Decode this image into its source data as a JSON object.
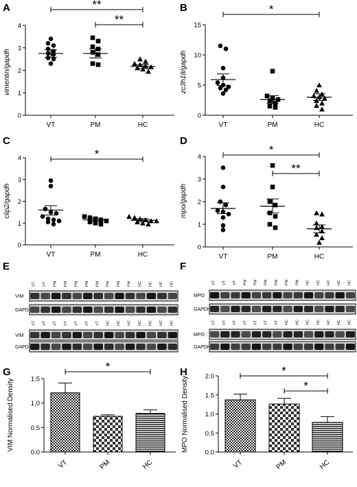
{
  "chart_data": [
    {
      "panel": "A",
      "type": "scatter",
      "ylabel": "vimentin/gapdh",
      "categories": [
        "VT",
        "PM",
        "HC"
      ],
      "ylim": [
        0,
        4
      ],
      "yticks": [
        0,
        1,
        2,
        3,
        4
      ],
      "marker": "circle",
      "groups": [
        {
          "category": "VT",
          "marker": "circle",
          "points": [
            3.4,
            3.2,
            3.1,
            2.95,
            2.85,
            2.75,
            2.7,
            2.55,
            2.5,
            2.3
          ],
          "mean": 2.75,
          "sem_low": 2.58,
          "sem_high": 2.92
        },
        {
          "category": "PM",
          "marker": "square",
          "points": [
            3.45,
            3.3,
            3.05,
            2.95,
            2.8,
            2.7,
            2.3,
            2.25
          ],
          "mean": 2.75,
          "sem_low": 2.55,
          "sem_high": 2.95
        },
        {
          "category": "HC",
          "marker": "triangle",
          "points": [
            2.5,
            2.4,
            2.3,
            2.25,
            2.2,
            2.15,
            2.1,
            2.05,
            1.95
          ],
          "mean": 2.17,
          "sem_low": 2.08,
          "sem_high": 2.26
        }
      ],
      "significance": [
        {
          "from": "VT",
          "to": "HC",
          "label": "**"
        },
        {
          "from": "PM",
          "to": "HC",
          "label": "**"
        }
      ]
    },
    {
      "panel": "B",
      "type": "scatter",
      "ylabel": "zc3h18/gapdh",
      "categories": [
        "VT",
        "PM",
        "HC"
      ],
      "ylim": [
        0,
        15
      ],
      "yticks": [
        0,
        5,
        10,
        15
      ],
      "groups": [
        {
          "category": "VT",
          "marker": "circle",
          "points": [
            11.5,
            11.0,
            7.8,
            6.2,
            5.4,
            5.0,
            4.7,
            4.5,
            4.2,
            3.6
          ],
          "mean": 5.9,
          "sem_low": 4.95,
          "sem_high": 6.85
        },
        {
          "category": "PM",
          "marker": "square",
          "points": [
            7.3,
            3.2,
            2.8,
            2.6,
            2.4,
            2.0,
            1.5,
            1.3
          ],
          "mean": 2.6,
          "sem_low": 1.95,
          "sem_high": 3.25
        },
        {
          "category": "HC",
          "marker": "triangle",
          "points": [
            5.0,
            4.1,
            3.5,
            3.2,
            3.0,
            2.8,
            2.4,
            2.0,
            1.6,
            1.0
          ],
          "mean": 3.0,
          "sem_low": 2.45,
          "sem_high": 3.55
        }
      ],
      "significance": [
        {
          "from": "VT",
          "to": "HC",
          "label": "*"
        }
      ]
    },
    {
      "panel": "C",
      "type": "scatter",
      "ylabel": "clip2/gapdh",
      "categories": [
        "VT",
        "PM",
        "HC"
      ],
      "ylim": [
        0,
        4
      ],
      "yticks": [
        0,
        1,
        2,
        3,
        4
      ],
      "groups": [
        {
          "category": "VT",
          "marker": "circle",
          "points": [
            2.95,
            2.7,
            1.65,
            1.5,
            1.45,
            1.3,
            1.2,
            1.15,
            1.1,
            1.05,
            0.95
          ],
          "mean": 1.6,
          "sem_low": 1.37,
          "sem_high": 1.8
        },
        {
          "category": "PM",
          "marker": "square",
          "points": [
            1.3,
            1.25,
            1.2,
            1.15,
            1.1,
            1.05,
            1.0,
            0.95
          ],
          "mean": 1.15,
          "sem_low": 1.07,
          "sem_high": 1.23
        },
        {
          "category": "HC",
          "marker": "triangle",
          "points": [
            1.3,
            1.25,
            1.2,
            1.15,
            1.1,
            1.1,
            1.05,
            1.0,
            0.95
          ],
          "mean": 1.13,
          "sem_low": 1.06,
          "sem_high": 1.2
        }
      ],
      "significance": [
        {
          "from": "VT",
          "to": "HC",
          "label": "*"
        }
      ]
    },
    {
      "panel": "D",
      "type": "scatter",
      "ylabel": "mpo/gapdh",
      "categories": [
        "VT",
        "PM",
        "HC"
      ],
      "ylim": [
        0,
        4
      ],
      "yticks": [
        0,
        1,
        2,
        3,
        4
      ],
      "groups": [
        {
          "category": "VT",
          "marker": "circle",
          "points": [
            3.5,
            2.65,
            2.0,
            1.85,
            1.6,
            1.55,
            1.45,
            1.3,
            0.95,
            0.75
          ],
          "mean": 1.7,
          "sem_low": 1.47,
          "sem_high": 1.95
        },
        {
          "category": "PM",
          "marker": "square",
          "points": [
            3.6,
            2.65,
            2.0,
            1.85,
            1.5,
            1.35,
            1.0,
            0.85
          ],
          "mean": 1.8,
          "sem_low": 1.5,
          "sem_high": 2.12
        },
        {
          "category": "HC",
          "marker": "triangle",
          "points": [
            1.5,
            1.45,
            1.05,
            0.9,
            0.85,
            0.7,
            0.55,
            0.4,
            0.2
          ],
          "mean": 0.8,
          "sem_low": 0.62,
          "sem_high": 0.97
        }
      ],
      "significance": [
        {
          "from": "VT",
          "to": "HC",
          "label": "*"
        },
        {
          "from": "PM",
          "to": "HC",
          "label": "**"
        }
      ]
    },
    {
      "panel": "G",
      "type": "bar",
      "ylabel": "VIM Normalised Density",
      "categories": [
        "VT",
        "PM",
        "HC"
      ],
      "ylim": [
        0,
        1.5
      ],
      "yticks": [
        "0.0",
        "0.5",
        "1.0",
        "1.5"
      ],
      "values": [
        1.21,
        0.73,
        0.79
      ],
      "error_high": [
        1.41,
        0.76,
        0.86
      ],
      "patterns": [
        "checker-dense",
        "checker-open",
        "horizontal-lines"
      ],
      "significance": [
        {
          "from": "VT",
          "to": "HC",
          "label": "*"
        }
      ]
    },
    {
      "panel": "H",
      "type": "bar",
      "ylabel": "MPO Normalised Density",
      "categories": [
        "VT",
        "PM",
        "HC"
      ],
      "ylim": [
        0,
        2
      ],
      "yticks": [
        "0.0",
        "0.5",
        "1.0",
        "1.5",
        "2.0"
      ],
      "values": [
        1.37,
        1.26,
        0.78
      ],
      "error_high": [
        1.52,
        1.41,
        0.93
      ],
      "patterns": [
        "checker-dense",
        "checker-open",
        "horizontal-lines"
      ],
      "significance": [
        {
          "from": "VT",
          "to": "HC",
          "label": "*"
        },
        {
          "from": "PM",
          "to": "HC",
          "label": "*"
        }
      ]
    }
  ],
  "panel_labels": {
    "A": "A",
    "B": "B",
    "C": "C",
    "D": "D",
    "E": "E",
    "F": "F",
    "G": "G",
    "H": "H"
  },
  "blots": {
    "E": {
      "rows": [
        {
          "lanes": [
            "VT",
            "VT",
            "PM",
            "PM",
            "PM",
            "PM",
            "PM",
            "PM",
            "PM",
            "PM",
            "HC",
            "HC",
            "HC",
            "HC"
          ],
          "bands": [
            {
              "label": "VIM"
            },
            {
              "label": "GAPDH"
            }
          ]
        },
        {
          "lanes": [
            "VT",
            "VT",
            "VT",
            "VT",
            "VT",
            "VT",
            "VT",
            "HC",
            "HC",
            "HC",
            "HC",
            "HC",
            "HC",
            "HC"
          ],
          "bands": [
            {
              "label": "VIM"
            },
            {
              "label": "GAPDH"
            }
          ]
        }
      ]
    },
    "F": {
      "rows": [
        {
          "lanes": [
            "VT",
            "VT",
            "VT",
            "PM",
            "PM",
            "PM",
            "PM",
            "PM",
            "PM",
            "HC",
            "HC",
            "HC",
            "HC",
            "HC"
          ],
          "bands": [
            {
              "label": "MPO"
            },
            {
              "label": "GAPDH"
            }
          ]
        },
        {
          "lanes": [
            "VT",
            "VT",
            "VT",
            "VT",
            "VT",
            "VT",
            "VT",
            "HC",
            "HC",
            "HC",
            "HC",
            "HC",
            "HC",
            "HC"
          ],
          "bands": [
            {
              "label": "MPO"
            },
            {
              "label": "GAPDH"
            }
          ]
        }
      ]
    }
  }
}
